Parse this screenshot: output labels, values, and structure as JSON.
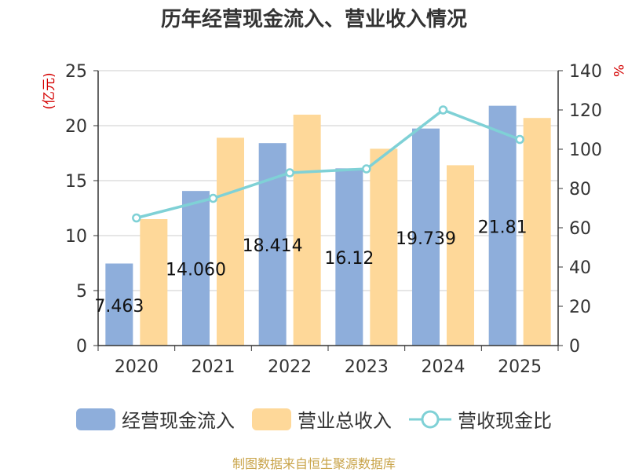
{
  "chart_data": {
    "type": "bar+line",
    "title": "历年经营现金流入、营业收入情况",
    "left_axis_unit": "(亿元)",
    "right_axis_unit": "%",
    "categories": [
      "2020",
      "2021",
      "2022",
      "2023",
      "2024",
      "2025"
    ],
    "left_ticks": [
      "0",
      "5",
      "10",
      "15",
      "20",
      "25"
    ],
    "right_ticks": [
      "0",
      "20",
      "40",
      "60",
      "80",
      "100",
      "120",
      "140"
    ],
    "ylim_left": [
      0,
      25
    ],
    "ylim_right": [
      0,
      140
    ],
    "series": [
      {
        "name": "经营现金流入",
        "type": "bar",
        "axis": "left",
        "color": "#8eaedb",
        "values": [
          7.463,
          14.06,
          18.414,
          16.12,
          19.739,
          21.81
        ],
        "labels": [
          "7.463",
          "14.060",
          "18.414",
          "16.12",
          "19.739",
          "21.81"
        ]
      },
      {
        "name": "营业总收入",
        "type": "bar",
        "axis": "left",
        "color": "#fed899",
        "values": [
          11.5,
          18.9,
          21.0,
          17.9,
          16.4,
          20.7
        ]
      },
      {
        "name": "营收现金比",
        "type": "line",
        "axis": "right",
        "color": "#7fd1d6",
        "values": [
          65,
          75,
          88,
          90,
          120,
          105
        ]
      }
    ],
    "legend_position": "bottom",
    "grid": true
  },
  "footer": {
    "source": "制图数据来自恒生聚源数据库"
  }
}
